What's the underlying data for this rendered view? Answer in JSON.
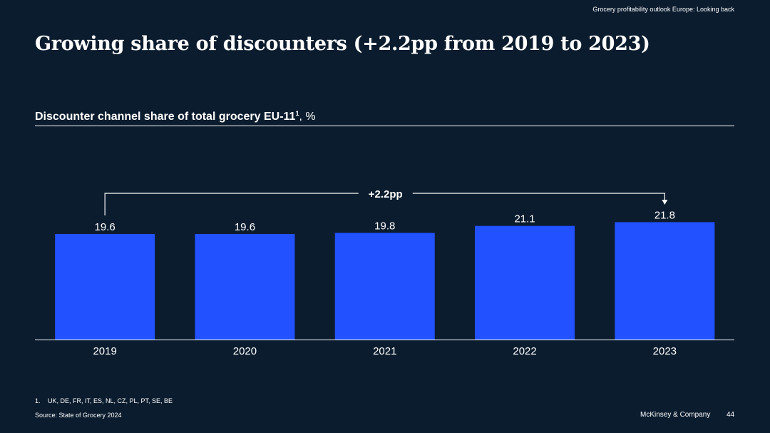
{
  "header": {
    "tag": "Grocery profitability outlook Europe: Looking back"
  },
  "title": "Growing share of discounters (+2.2pp from 2019 to 2023)",
  "subtitle": {
    "main": "Discounter channel share of total grocery EU-11",
    "sup": "1",
    "unit": ", %"
  },
  "chart_data": {
    "type": "bar",
    "categories": [
      "2019",
      "2020",
      "2021",
      "2022",
      "2023"
    ],
    "values": [
      19.6,
      19.6,
      19.8,
      21.1,
      21.8
    ],
    "value_labels": [
      "19.6",
      "19.6",
      "19.8",
      "21.1",
      "21.8"
    ],
    "title": "Discounter channel share of total grocery EU-11, %",
    "xlabel": "",
    "ylabel": "",
    "grid": false,
    "legend": "none",
    "bar_color": "#2251ff",
    "annotation": {
      "text": "+2.2pp",
      "from": "2019",
      "to": "2023"
    }
  },
  "footnote": {
    "number": "1.",
    "text": "UK, DE, FR, IT, ES, NL, CZ, PL, PT, SE, BE"
  },
  "source": "Source: State of Grocery 2024",
  "brand": "McKinsey & Company",
  "page_number": "44"
}
